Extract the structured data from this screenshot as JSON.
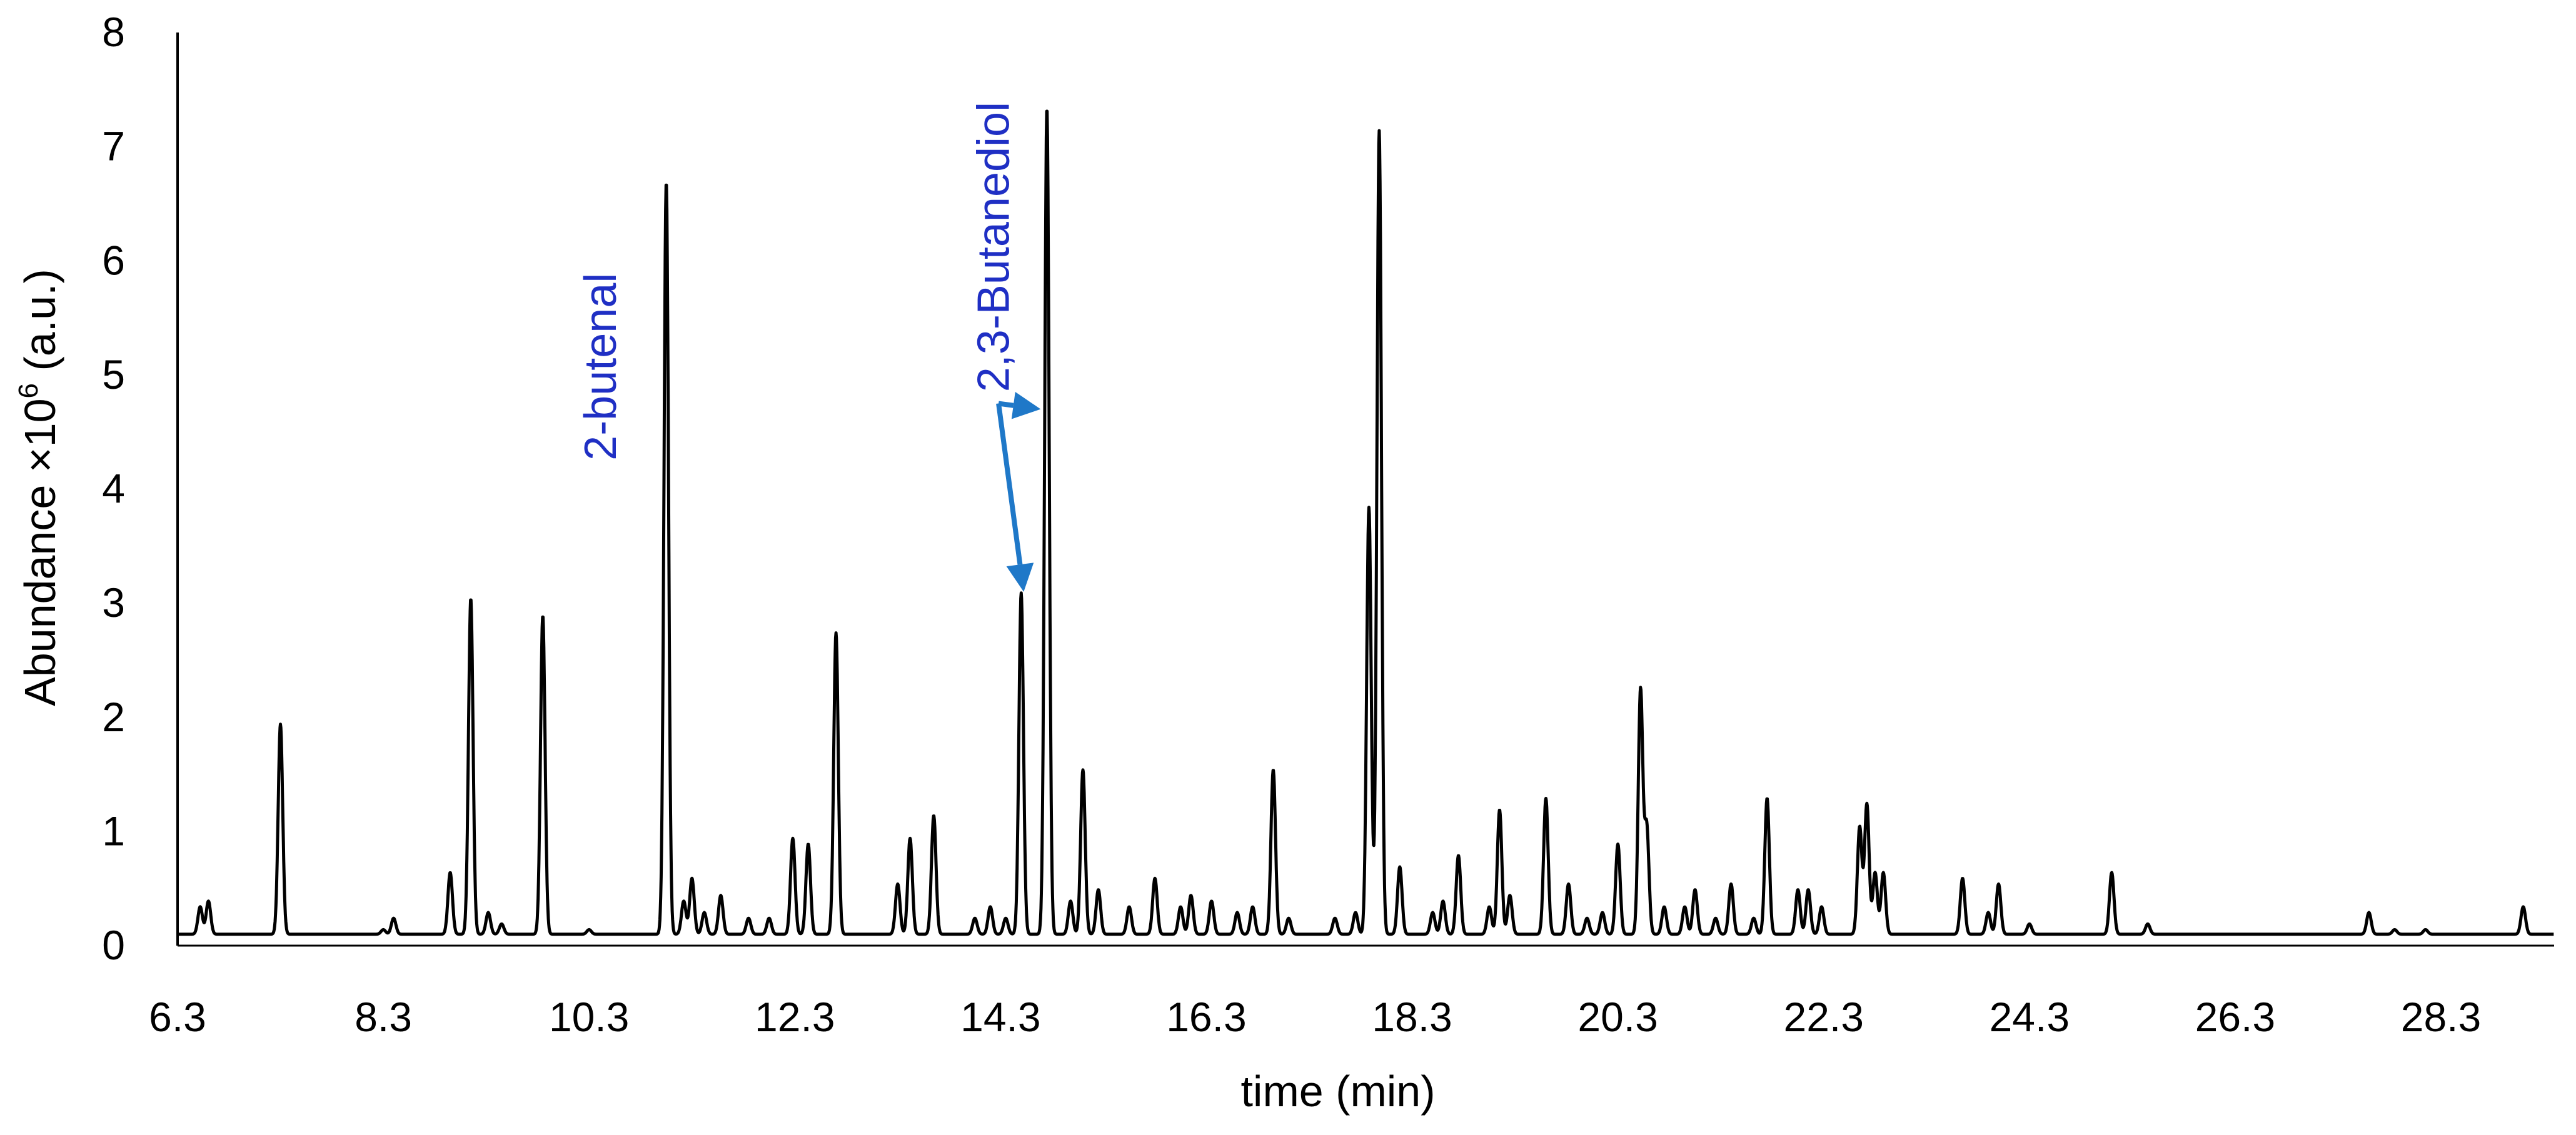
{
  "chart_data": {
    "type": "line",
    "xlabel": "time (min)",
    "ylabel_parts": [
      "Abundance ×10",
      "6",
      " (a.u.)"
    ],
    "xlim": [
      6.3,
      29.4
    ],
    "ylim": [
      0,
      8
    ],
    "x_ticks": [
      6.3,
      8.3,
      10.3,
      12.3,
      14.3,
      16.3,
      18.3,
      20.3,
      22.3,
      24.3,
      26.3,
      28.3
    ],
    "y_ticks": [
      0,
      1,
      2,
      3,
      4,
      5,
      6,
      7,
      8
    ],
    "grid": false,
    "baseline": 0.1,
    "peaks": [
      {
        "t": 6.52,
        "h": 0.3
      },
      {
        "t": 6.6,
        "h": 0.35
      },
      {
        "t": 7.3,
        "h": 1.9
      },
      {
        "t": 8.3,
        "h": 0.1
      },
      {
        "t": 8.4,
        "h": 0.2
      },
      {
        "t": 8.95,
        "h": 0.6
      },
      {
        "t": 9.15,
        "h": 3.0
      },
      {
        "t": 9.32,
        "h": 0.25
      },
      {
        "t": 9.45,
        "h": 0.15
      },
      {
        "t": 9.85,
        "h": 2.85
      },
      {
        "t": 10.3,
        "h": 0.1
      },
      {
        "t": 11.05,
        "h": 6.65
      },
      {
        "t": 11.22,
        "h": 0.35
      },
      {
        "t": 11.3,
        "h": 0.55
      },
      {
        "t": 11.42,
        "h": 0.25
      },
      {
        "t": 11.58,
        "h": 0.4
      },
      {
        "t": 11.85,
        "h": 0.2
      },
      {
        "t": 12.05,
        "h": 0.2
      },
      {
        "t": 12.28,
        "h": 0.9
      },
      {
        "t": 12.43,
        "h": 0.85
      },
      {
        "t": 12.7,
        "h": 2.7
      },
      {
        "t": 13.3,
        "h": 0.5
      },
      {
        "t": 13.42,
        "h": 0.9
      },
      {
        "t": 13.65,
        "h": 1.1
      },
      {
        "t": 14.05,
        "h": 0.2
      },
      {
        "t": 14.2,
        "h": 0.3
      },
      {
        "t": 14.35,
        "h": 0.2
      },
      {
        "t": 14.5,
        "h": 3.05
      },
      {
        "t": 14.75,
        "h": 7.3
      },
      {
        "t": 14.98,
        "h": 0.35
      },
      {
        "t": 15.1,
        "h": 1.5
      },
      {
        "t": 15.25,
        "h": 0.45
      },
      {
        "t": 15.55,
        "h": 0.3
      },
      {
        "t": 15.8,
        "h": 0.55
      },
      {
        "t": 16.05,
        "h": 0.3
      },
      {
        "t": 16.15,
        "h": 0.4
      },
      {
        "t": 16.35,
        "h": 0.35
      },
      {
        "t": 16.6,
        "h": 0.25
      },
      {
        "t": 16.75,
        "h": 0.3
      },
      {
        "t": 16.95,
        "h": 1.5
      },
      {
        "t": 17.1,
        "h": 0.2
      },
      {
        "t": 17.55,
        "h": 0.2
      },
      {
        "t": 17.75,
        "h": 0.25
      },
      {
        "t": 17.88,
        "h": 3.8
      },
      {
        "t": 17.98,
        "h": 7.1
      },
      {
        "t": 18.18,
        "h": 0.65
      },
      {
        "t": 18.5,
        "h": 0.25
      },
      {
        "t": 18.6,
        "h": 0.35
      },
      {
        "t": 18.75,
        "h": 0.75
      },
      {
        "t": 19.05,
        "h": 0.3
      },
      {
        "t": 19.15,
        "h": 1.15
      },
      {
        "t": 19.25,
        "h": 0.4
      },
      {
        "t": 19.6,
        "h": 1.25
      },
      {
        "t": 19.82,
        "h": 0.5
      },
      {
        "t": 20.0,
        "h": 0.2
      },
      {
        "t": 20.15,
        "h": 0.25
      },
      {
        "t": 20.3,
        "h": 0.85
      },
      {
        "t": 20.52,
        "h": 2.2
      },
      {
        "t": 20.58,
        "h": 1.0
      },
      {
        "t": 20.75,
        "h": 0.3
      },
      {
        "t": 20.95,
        "h": 0.3
      },
      {
        "t": 21.05,
        "h": 0.45
      },
      {
        "t": 21.25,
        "h": 0.2
      },
      {
        "t": 21.4,
        "h": 0.5
      },
      {
        "t": 21.62,
        "h": 0.2
      },
      {
        "t": 21.75,
        "h": 1.25
      },
      {
        "t": 22.05,
        "h": 0.45
      },
      {
        "t": 22.15,
        "h": 0.45
      },
      {
        "t": 22.28,
        "h": 0.3
      },
      {
        "t": 22.65,
        "h": 1.0
      },
      {
        "t": 22.72,
        "h": 1.2
      },
      {
        "t": 22.8,
        "h": 0.6
      },
      {
        "t": 22.88,
        "h": 0.6
      },
      {
        "t": 23.65,
        "h": 0.55
      },
      {
        "t": 23.9,
        "h": 0.25
      },
      {
        "t": 24.0,
        "h": 0.5
      },
      {
        "t": 24.3,
        "h": 0.15
      },
      {
        "t": 25.1,
        "h": 0.6
      },
      {
        "t": 25.45,
        "h": 0.15
      },
      {
        "t": 27.6,
        "h": 0.25
      },
      {
        "t": 27.85,
        "h": 0.1
      },
      {
        "t": 28.15,
        "h": 0.1
      },
      {
        "t": 29.1,
        "h": 0.3
      }
    ],
    "annotations": [
      {
        "text": "2-butenal",
        "x": 10.9,
        "rotation": -90
      },
      {
        "text": "2,3-Butanediol",
        "x": 14.5,
        "rotation": -90,
        "arrow_targets": [
          {
            "t": 14.75,
            "y": 4.7
          },
          {
            "t": 14.5,
            "y": 3.1
          }
        ],
        "arrow_origin": {
          "t": 14.28,
          "y": 4.75
        }
      }
    ],
    "line_color": "#000000",
    "annotation_color": "#1f2fc4",
    "arrow_color": "#1f78c8"
  }
}
